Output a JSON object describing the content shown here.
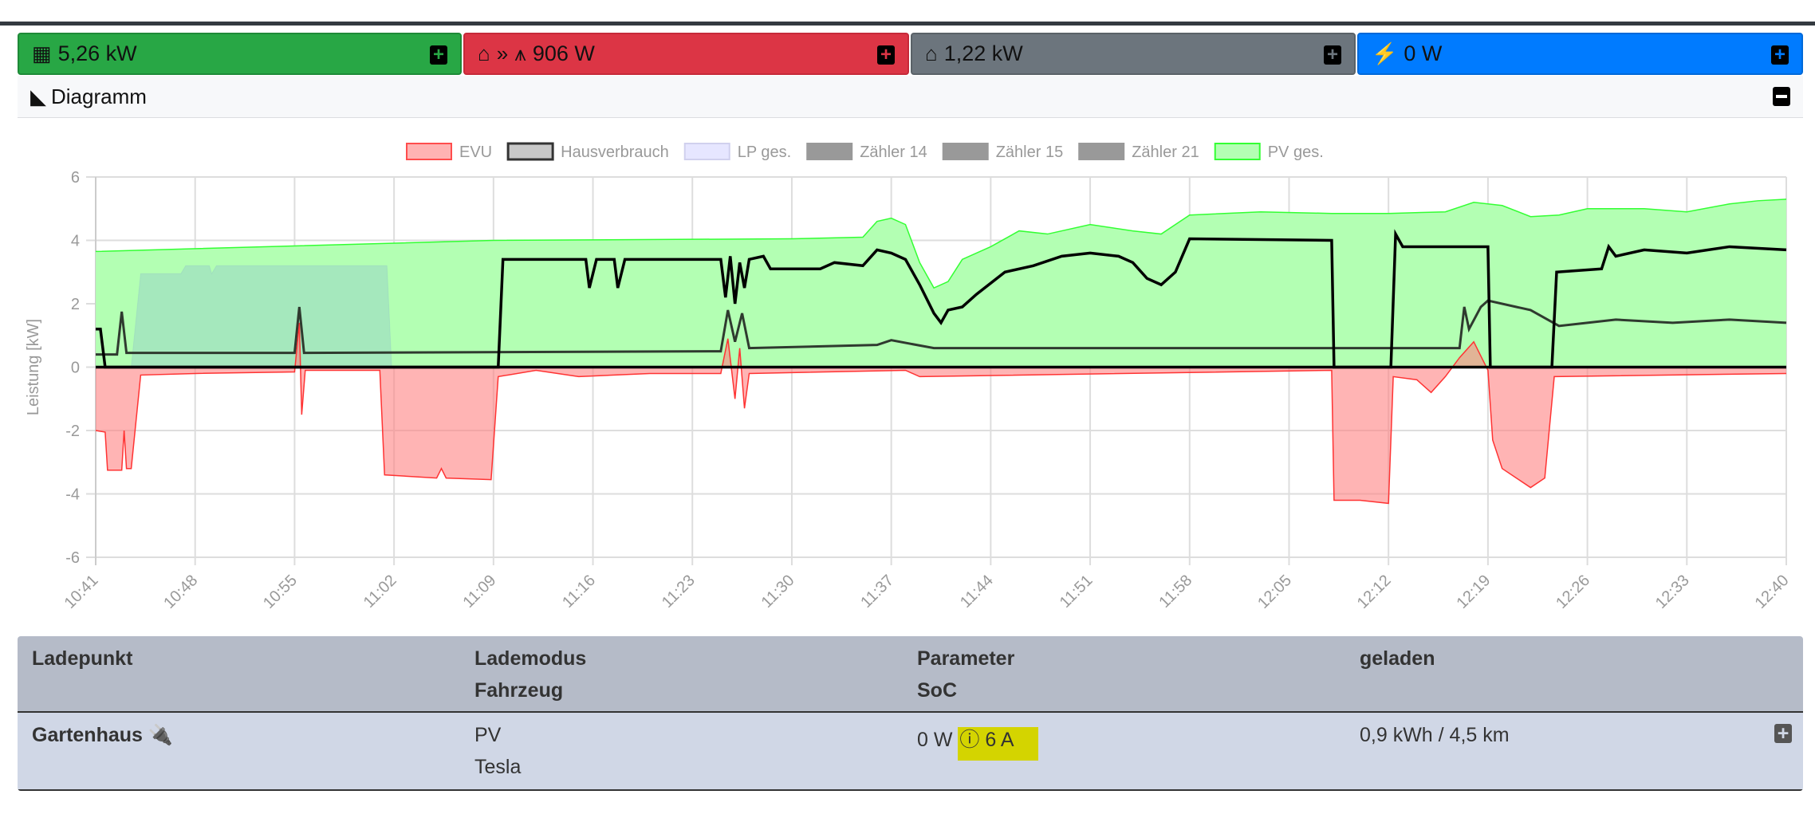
{
  "summary": [
    {
      "label": "5,26 kW",
      "icon": "solar-panel-icon",
      "color": "#28a745"
    },
    {
      "label": "906 W",
      "icon": "house-to-grid-icon",
      "color": "#dc3545"
    },
    {
      "label": "1,22 kW",
      "icon": "house-icon",
      "color": "#6c757d"
    },
    {
      "label": "0 W",
      "icon": "charging-station-icon",
      "color": "#007bff"
    }
  ],
  "diagram": {
    "title": "Diagramm"
  },
  "chart_data": {
    "type": "area",
    "ylabel": "Leistung [kW]",
    "ylim": [
      -6,
      6
    ],
    "yticks": [
      "6",
      "4",
      "2",
      "0",
      "-2",
      "-4",
      "-6"
    ],
    "xlim": [
      "10:41",
      "12:40"
    ],
    "xticks": [
      "10:41",
      "10:48",
      "10:55",
      "11:02",
      "11:09",
      "11:16",
      "11:23",
      "11:30",
      "11:37",
      "11:44",
      "11:51",
      "11:58",
      "12:05",
      "12:12",
      "12:19",
      "12:26",
      "12:33",
      "12:40"
    ],
    "grid": true,
    "legend_position": "top",
    "legend": [
      {
        "name": "EVU",
        "fill": "#ffb3b3",
        "border": "#ff4d4d"
      },
      {
        "name": "Hausverbrauch",
        "fill": "#c8c8c8",
        "border": "#333333"
      },
      {
        "name": "LP ges.",
        "fill": "#e6e6ff",
        "border": "#d0d0ee"
      },
      {
        "name": "Zähler 14",
        "fill": "#999999",
        "border": "#999999"
      },
      {
        "name": "Zähler 15",
        "fill": "#999999",
        "border": "#999999"
      },
      {
        "name": "Zähler 21",
        "fill": "#999999",
        "border": "#999999"
      },
      {
        "name": "PV ges.",
        "fill": "#b3ffb3",
        "border": "#33ff33"
      }
    ],
    "series": {
      "pv": [
        [
          "10:41",
          3.65
        ],
        [
          "11:09",
          4.0
        ],
        [
          "11:30",
          4.05
        ],
        [
          "11:35",
          4.1
        ],
        [
          "11:36",
          4.6
        ],
        [
          "11:37",
          4.7
        ],
        [
          "11:38",
          4.5
        ],
        [
          "11:39",
          3.3
        ],
        [
          "11:40",
          2.5
        ],
        [
          "11:41",
          2.7
        ],
        [
          "11:42",
          3.4
        ],
        [
          "11:44",
          3.8
        ],
        [
          "11:46",
          4.3
        ],
        [
          "11:48",
          4.2
        ],
        [
          "11:51",
          4.5
        ],
        [
          "11:54",
          4.3
        ],
        [
          "11:56",
          4.2
        ],
        [
          "11:57",
          4.5
        ],
        [
          "11:58",
          4.8
        ],
        [
          "12:03",
          4.9
        ],
        [
          "12:08",
          4.85
        ],
        [
          "12:12",
          4.85
        ],
        [
          "12:16",
          4.9
        ],
        [
          "12:18",
          5.2
        ],
        [
          "12:20",
          5.1
        ],
        [
          "12:22",
          4.75
        ],
        [
          "12:24",
          4.8
        ],
        [
          "12:26",
          5.0
        ],
        [
          "12:30",
          5.0
        ],
        [
          "12:33",
          4.9
        ],
        [
          "12:36",
          5.15
        ],
        [
          "12:38",
          5.25
        ],
        [
          "12:40",
          5.3
        ]
      ],
      "lp": [
        [
          "10:41",
          0
        ],
        [
          "10:43:30",
          0
        ],
        [
          "10:44:10",
          2.95
        ],
        [
          "10:47",
          2.95
        ],
        [
          "10:47:20",
          3.2
        ],
        [
          "10:49",
          3.2
        ],
        [
          "10:49:10",
          2.95
        ],
        [
          "10:49:30",
          3.2
        ],
        [
          "11:01:30",
          3.2
        ],
        [
          "11:01:50",
          0
        ],
        [
          "12:40",
          0
        ]
      ],
      "evu": [
        [
          "10:41",
          -2
        ],
        [
          "10:41:40",
          -2.05
        ],
        [
          "10:41:50",
          -3.25
        ],
        [
          "10:42:50",
          -3.25
        ],
        [
          "10:43",
          -2.0
        ],
        [
          "10:43:10",
          -3.2
        ],
        [
          "10:43:30",
          -3.2
        ],
        [
          "10:44:10",
          -0.25
        ],
        [
          "10:48",
          -0.2
        ],
        [
          "10:55",
          -0.15
        ],
        [
          "10:55:20",
          1.4
        ],
        [
          "10:55:30",
          -1.5
        ],
        [
          "10:55:45",
          -0.1
        ],
        [
          "11:01",
          -0.1
        ],
        [
          "11:01:20",
          -3.4
        ],
        [
          "11:05",
          -3.5
        ],
        [
          "11:05:20",
          -3.2
        ],
        [
          "11:05:40",
          -3.5
        ],
        [
          "11:08:50",
          -3.55
        ],
        [
          "11:09:20",
          -0.3
        ],
        [
          "11:12",
          -0.1
        ],
        [
          "11:15",
          -0.3
        ],
        [
          "11:20",
          -0.2
        ],
        [
          "11:25",
          -0.2
        ],
        [
          "11:25:30",
          0.9
        ],
        [
          "11:26",
          -1.0
        ],
        [
          "11:26:20",
          0.6
        ],
        [
          "11:26:40",
          -1.3
        ],
        [
          "11:27",
          -0.2
        ],
        [
          "11:38",
          -0.1
        ],
        [
          "11:39",
          -0.3
        ],
        [
          "12:08",
          -0.1
        ],
        [
          "12:08:10",
          -4.2
        ],
        [
          "12:10",
          -4.2
        ],
        [
          "12:12",
          -4.3
        ],
        [
          "12:12:20",
          -0.3
        ],
        [
          "12:14",
          -0.4
        ],
        [
          "12:15",
          -0.8
        ],
        [
          "12:16",
          -0.3
        ],
        [
          "12:17",
          0.3
        ],
        [
          "12:18",
          0.8
        ],
        [
          "12:19",
          -0.1
        ],
        [
          "12:19:20",
          -2.3
        ],
        [
          "12:20",
          -3.2
        ],
        [
          "12:21",
          -3.5
        ],
        [
          "12:22",
          -3.8
        ],
        [
          "12:23",
          -3.5
        ],
        [
          "12:23:40",
          -0.3
        ],
        [
          "12:40",
          -0.2
        ]
      ],
      "haus": [
        [
          "10:41",
          0.4
        ],
        [
          "10:42:30",
          0.4
        ],
        [
          "10:42:50",
          1.75
        ],
        [
          "10:43:10",
          0.45
        ],
        [
          "10:55",
          0.45
        ],
        [
          "10:55:20",
          1.9
        ],
        [
          "10:55:40",
          0.45
        ],
        [
          "11:25",
          0.5
        ],
        [
          "11:25:30",
          1.8
        ],
        [
          "11:26",
          0.8
        ],
        [
          "11:26:30",
          1.7
        ],
        [
          "11:27",
          0.6
        ],
        [
          "11:36",
          0.7
        ],
        [
          "11:37",
          0.85
        ],
        [
          "11:40",
          0.6
        ],
        [
          "12:17",
          0.6
        ],
        [
          "12:17:20",
          1.9
        ],
        [
          "12:17:40",
          1.2
        ],
        [
          "12:18:30",
          1.9
        ],
        [
          "12:19",
          2.1
        ],
        [
          "12:21",
          1.9
        ],
        [
          "12:22",
          1.8
        ],
        [
          "12:24",
          1.3
        ],
        [
          "12:26",
          1.4
        ],
        [
          "12:28",
          1.5
        ],
        [
          "12:32",
          1.4
        ],
        [
          "12:36",
          1.5
        ],
        [
          "12:40",
          1.4
        ]
      ],
      "z14": [
        [
          "10:41",
          1.2
        ],
        [
          "10:41:20",
          1.2
        ],
        [
          "10:41:40",
          0
        ],
        [
          "11:09:20",
          0
        ],
        [
          "11:09:40",
          3.4
        ],
        [
          "11:15:30",
          3.4
        ],
        [
          "11:15:45",
          2.5
        ],
        [
          "11:16:15",
          3.4
        ],
        [
          "11:17:30",
          3.4
        ],
        [
          "11:17:45",
          2.5
        ],
        [
          "11:18:15",
          3.4
        ],
        [
          "11:25",
          3.4
        ],
        [
          "11:25:20",
          2.2
        ],
        [
          "11:25:40",
          3.5
        ],
        [
          "11:26",
          2.0
        ],
        [
          "11:26:20",
          3.3
        ],
        [
          "11:26:40",
          2.5
        ],
        [
          "11:27",
          3.4
        ],
        [
          "11:28",
          3.5
        ],
        [
          "11:28:30",
          3.1
        ],
        [
          "11:32",
          3.1
        ],
        [
          "11:33",
          3.3
        ],
        [
          "11:35",
          3.2
        ],
        [
          "11:36",
          3.7
        ],
        [
          "11:37",
          3.6
        ],
        [
          "11:38",
          3.4
        ],
        [
          "11:39",
          2.6
        ],
        [
          "11:40",
          1.7
        ],
        [
          "11:40:30",
          1.4
        ],
        [
          "11:41",
          1.8
        ],
        [
          "11:42",
          1.9
        ],
        [
          "11:43",
          2.3
        ],
        [
          "11:45",
          3.0
        ],
        [
          "11:47",
          3.2
        ],
        [
          "11:49",
          3.5
        ],
        [
          "11:51",
          3.6
        ],
        [
          "11:53",
          3.5
        ],
        [
          "11:54",
          3.3
        ],
        [
          "11:55",
          2.8
        ],
        [
          "11:56",
          2.6
        ],
        [
          "11:57",
          3.0
        ],
        [
          "11:58",
          4.05
        ],
        [
          "12:08",
          4.0
        ],
        [
          "12:08:10",
          0
        ],
        [
          "12:12:10",
          0
        ],
        [
          "12:12:30",
          4.2
        ],
        [
          "12:13",
          3.8
        ],
        [
          "12:19",
          3.8
        ],
        [
          "12:19:10",
          0
        ],
        [
          "12:23:30",
          0
        ],
        [
          "12:23:50",
          3.0
        ],
        [
          "12:27",
          3.1
        ],
        [
          "12:27:30",
          3.8
        ],
        [
          "12:28",
          3.5
        ],
        [
          "12:30",
          3.7
        ],
        [
          "12:33",
          3.6
        ],
        [
          "12:36",
          3.8
        ],
        [
          "12:40",
          3.7
        ]
      ],
      "zero": [
        [
          "10:41",
          0
        ],
        [
          "12:40",
          0
        ]
      ]
    }
  },
  "table": {
    "headers": {
      "col1": "Ladepunkt",
      "col2a": "Lademodus",
      "col2b": "Fahrzeug",
      "col3a": "Parameter",
      "col3b": "SoC",
      "col4": "geladen"
    },
    "rows": [
      {
        "name": "Gartenhaus",
        "mode": "PV",
        "vehicle": "Tesla",
        "power": "0 W",
        "current": "6 A",
        "charged": "0,9 kWh / 4,5 km"
      }
    ]
  }
}
